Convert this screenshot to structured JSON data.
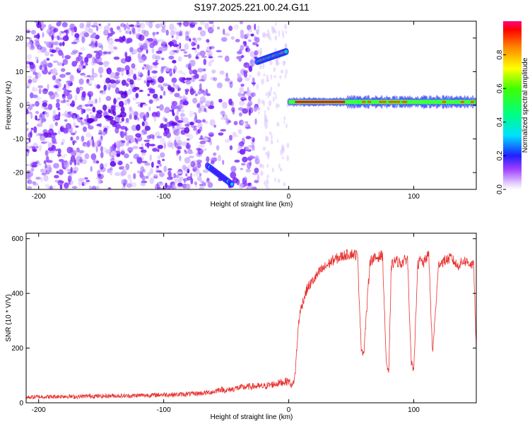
{
  "page_title": "S197.2025.221.00.24.G11",
  "colors": {
    "purple": "#7a1fff",
    "light_purple": "#c8a6ff",
    "snr_line": "#e8302e"
  },
  "chart_data": [
    {
      "type": "heatmap",
      "id": "spectrogram",
      "title": "S197.2025.221.00.24.G11",
      "xlabel": "Height of straight line (km)",
      "ylabel": "Frequency (Hz)",
      "xlim": [
        -210,
        150
      ],
      "ylim": [
        -25,
        25
      ],
      "xticks": [
        -200,
        -100,
        0,
        100
      ],
      "xtick_labels": [
        "-200",
        "-100",
        "0",
        "100"
      ],
      "yticks": [
        -20,
        -10,
        0,
        10,
        20
      ],
      "ytick_labels": [
        "-20",
        "-10",
        "0",
        "10",
        "20"
      ],
      "colorbar": {
        "label": "Normalized spectral amplitude",
        "range": [
          0,
          1
        ],
        "ticks": [
          0.0,
          0.2,
          0.4,
          0.6,
          0.8
        ],
        "tick_labels": [
          "0.0",
          "0.2",
          "0.4",
          "0.6",
          "0.8"
        ]
      },
      "features": [
        {
          "name": "noise-scatter",
          "x_range": [
            -210,
            -25
          ],
          "y_range": [
            -25,
            25
          ],
          "amplitude": 0.15
        },
        {
          "name": "track-upper",
          "x_range": [
            -25,
            -2
          ],
          "y_range": [
            13,
            16
          ],
          "amplitude": 0.55
        },
        {
          "name": "track-lower",
          "x_range": [
            -65,
            -45
          ],
          "y_range": [
            -25,
            -18
          ],
          "amplitude": 0.4
        },
        {
          "name": "carrier-line",
          "x_range": [
            0,
            150
          ],
          "y": 1,
          "amplitude": 1.0
        }
      ]
    },
    {
      "type": "line",
      "id": "snr",
      "xlabel": "Height of straight line (km)",
      "ylabel": "SNR (10 * V/V)",
      "xlim": [
        -210,
        150
      ],
      "ylim": [
        0,
        620
      ],
      "xticks": [
        -200,
        -100,
        0,
        100
      ],
      "xtick_labels": [
        "-200",
        "-100",
        "0",
        "100"
      ],
      "yticks": [
        0,
        200,
        400,
        600
      ],
      "ytick_labels": [
        "0",
        "200",
        "400",
        "600"
      ],
      "series": [
        {
          "name": "SNR",
          "x": [
            -210,
            -200,
            -190,
            -180,
            -170,
            -160,
            -150,
            -140,
            -130,
            -120,
            -110,
            -100,
            -90,
            -80,
            -70,
            -60,
            -55,
            -50,
            -40,
            -30,
            -20,
            -10,
            -5,
            0,
            3,
            5,
            8,
            10,
            12,
            15,
            20,
            25,
            30,
            35,
            40,
            45,
            50,
            55,
            58,
            60,
            65,
            70,
            75,
            78,
            80,
            82,
            85,
            90,
            95,
            98,
            100,
            103,
            105,
            108,
            110,
            112,
            115,
            120,
            125,
            130,
            135,
            140,
            145,
            148,
            150
          ],
          "y": [
            20,
            22,
            22,
            24,
            22,
            25,
            24,
            26,
            25,
            27,
            28,
            30,
            30,
            32,
            35,
            40,
            50,
            45,
            55,
            60,
            60,
            70,
            75,
            80,
            60,
            100,
            300,
            350,
            380,
            420,
            450,
            480,
            500,
            520,
            530,
            540,
            545,
            540,
            200,
            180,
            520,
            530,
            540,
            150,
            100,
            500,
            520,
            510,
            530,
            150,
            110,
            500,
            520,
            510,
            530,
            540,
            180,
            510,
            520,
            530,
            500,
            520,
            510,
            500,
            180
          ]
        }
      ]
    }
  ]
}
